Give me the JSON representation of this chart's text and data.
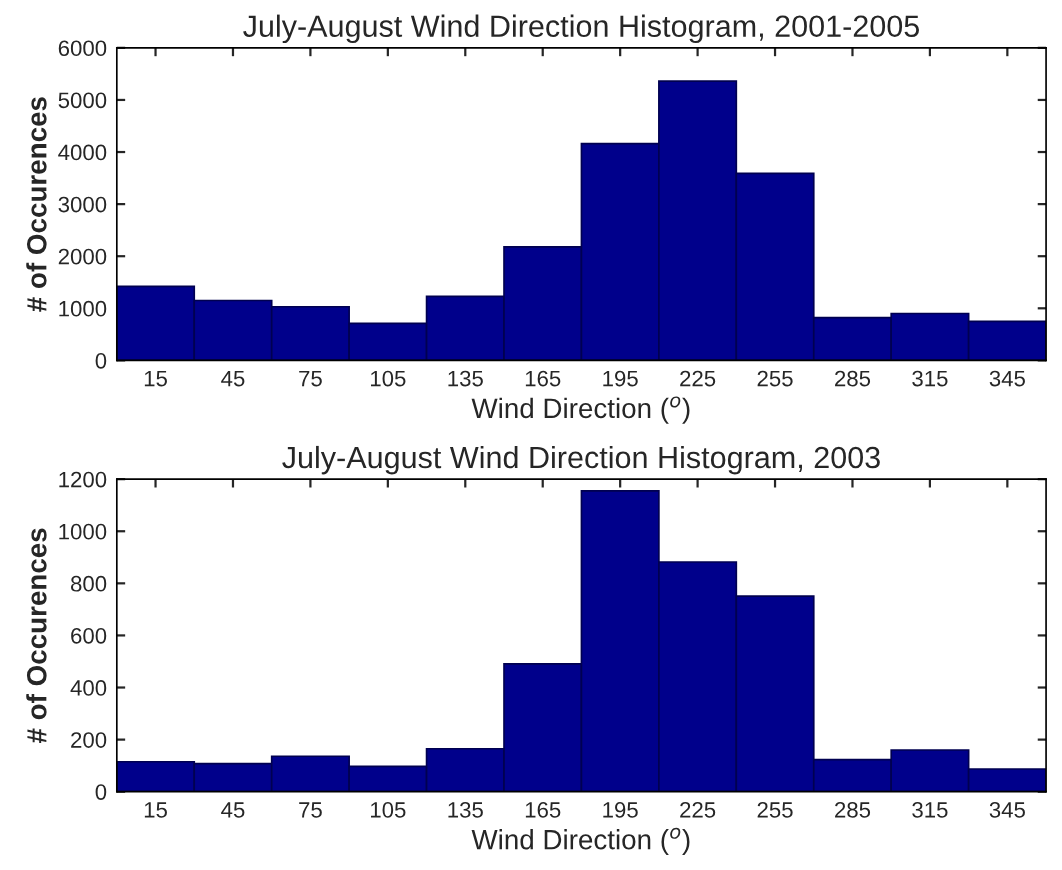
{
  "chart_data": [
    {
      "type": "histogram",
      "title": "July-August Wind Direction Histogram, 2001-2005",
      "xlabel": "Wind Direction ($^{o}$)",
      "ylabel": "# of Occurences",
      "color": "#00008b",
      "bins": [
        0,
        30,
        60,
        90,
        120,
        150,
        180,
        210,
        240,
        270,
        300,
        330,
        360
      ],
      "values": [
        1420,
        1150,
        1030,
        710,
        1230,
        2180,
        4160,
        5360,
        3590,
        820,
        900,
        750
      ],
      "xlim": [
        0,
        360
      ],
      "xticks": [
        15,
        45,
        75,
        105,
        135,
        165,
        195,
        225,
        255,
        285,
        315,
        345
      ],
      "ylim": [
        0,
        6000
      ],
      "yticks": [
        0,
        1000,
        2000,
        3000,
        4000,
        5000,
        6000
      ],
      "grid": false
    },
    {
      "type": "histogram",
      "title": "July-August Wind Direction Histogram, 2003",
      "xlabel": "Wind Direction ($^{o}$)",
      "ylabel": "# of Occurences",
      "color": "#00008b",
      "bins": [
        0,
        30,
        60,
        90,
        120,
        150,
        180,
        210,
        240,
        270,
        300,
        330,
        360
      ],
      "values": [
        115,
        108,
        136,
        97,
        165,
        491,
        1155,
        882,
        751,
        123,
        160,
        87
      ],
      "xlim": [
        0,
        360
      ],
      "xticks": [
        15,
        45,
        75,
        105,
        135,
        165,
        195,
        225,
        255,
        285,
        315,
        345
      ],
      "ylim": [
        0,
        1200
      ],
      "yticks": [
        0,
        200,
        400,
        600,
        800,
        1000,
        1200
      ],
      "grid": false
    }
  ]
}
